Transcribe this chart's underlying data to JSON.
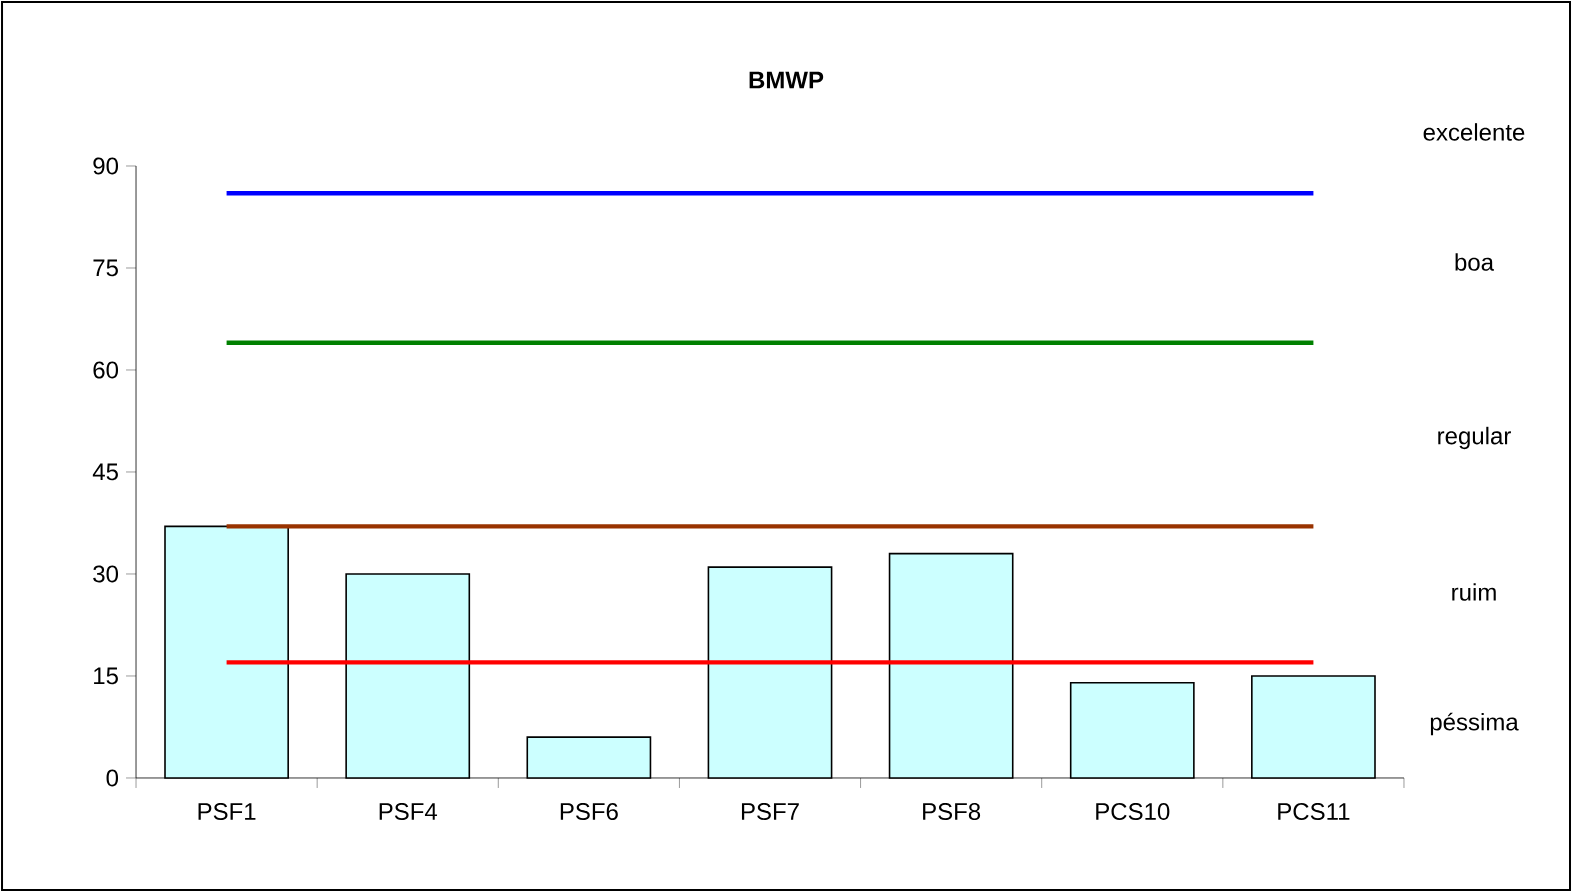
{
  "chart_data": {
    "type": "bar",
    "title": "BMWP",
    "categories": [
      "PSF1",
      "PSF4",
      "PSF6",
      "PSF7",
      "PSF8",
      "PCS10",
      "PCS11"
    ],
    "values": [
      37,
      30,
      6,
      31,
      33,
      14,
      15
    ],
    "color": "#ccffff",
    "ylim": [
      0,
      90
    ],
    "yticks": [
      0,
      15,
      30,
      45,
      60,
      75,
      90
    ],
    "grid": false,
    "ref_lines": [
      {
        "axis": "y",
        "value": 86,
        "color": "#0000ff"
      },
      {
        "axis": "y",
        "value": 64,
        "color": "#008000"
      },
      {
        "axis": "y",
        "value": 37,
        "color": "#993300"
      },
      {
        "axis": "y",
        "value": 17,
        "color": "#ff0000"
      }
    ],
    "annotations": [
      "excelente",
      "boa",
      "regular",
      "ruim",
      "péssima"
    ]
  }
}
